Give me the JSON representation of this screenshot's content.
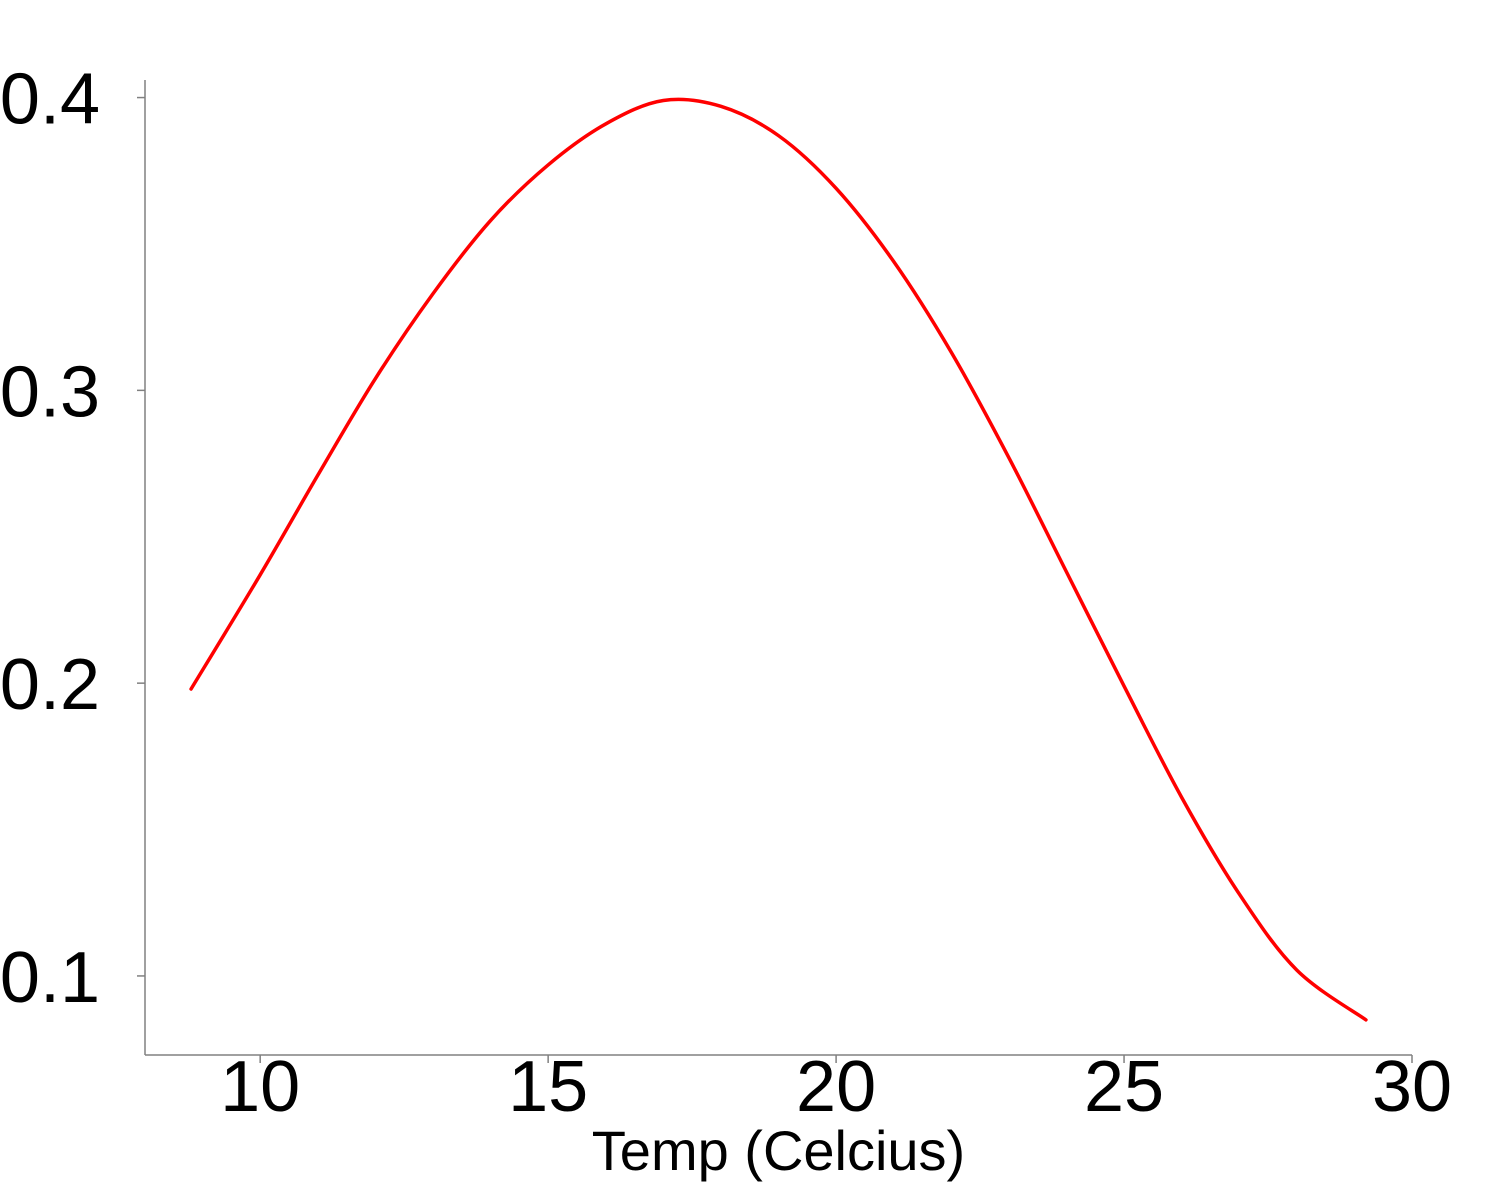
{
  "chart_data": {
    "type": "line",
    "title": "",
    "xlabel": "Temp (Celcius)",
    "ylabel": "",
    "xlim": [
      8,
      30
    ],
    "ylim": [
      0.073,
      0.406
    ],
    "xticks": [
      10,
      15,
      20,
      25,
      30
    ],
    "yticks": [
      0.1,
      0.2,
      0.3,
      0.4
    ],
    "xtick_labels": [
      "10",
      "15",
      "20",
      "25",
      "30"
    ],
    "ytick_labels": [
      "0.1",
      "0.2",
      "0.3",
      "0.4"
    ],
    "grid": false,
    "legend": "none",
    "series": [
      {
        "color": "#ff0000",
        "x": [
          8.8,
          10,
          11,
          12,
          13,
          14,
          15,
          16,
          17,
          18,
          19,
          20,
          21,
          22,
          23,
          24,
          25,
          26,
          27,
          28,
          29.2
        ],
        "y": [
          0.198,
          0.237,
          0.271,
          0.304,
          0.333,
          0.358,
          0.377,
          0.391,
          0.399,
          0.397,
          0.387,
          0.369,
          0.344,
          0.313,
          0.277,
          0.238,
          0.199,
          0.161,
          0.128,
          0.102,
          0.085
        ]
      }
    ]
  }
}
